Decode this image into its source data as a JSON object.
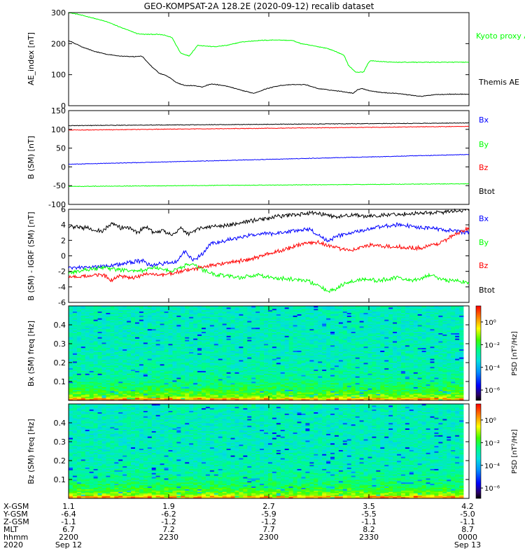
{
  "title": "GEO-KOMPSAT-2A 128.2E (2020-09-12) recalib dataset",
  "colors": {
    "black": "#000000",
    "green": "#00ff00",
    "red": "#ff0000",
    "blue": "#0000ff"
  },
  "chart_data": [
    {
      "type": "line",
      "ylabel": "AE_index [nT]",
      "ylim": [
        0,
        300
      ],
      "yticks": [
        "0",
        "100",
        "200",
        "300"
      ],
      "series": [
        {
          "name": "Kyoto proxy AE",
          "color": "green",
          "x": [
            0,
            2,
            5,
            9,
            12,
            13.5,
            14.5,
            16,
            17.5,
            19,
            20.5,
            22,
            24,
            26,
            28,
            30,
            32,
            34,
            37,
            40,
            44,
            48,
            52,
            54,
            56,
            58,
            60,
            62,
            64,
            65,
            66.5,
            67,
            68.5,
            69.5,
            70,
            72,
            75,
            80,
            84,
            87,
            90,
            93
          ],
          "values": [
            300,
            295,
            285,
            270,
            253,
            245,
            240,
            232,
            230,
            230,
            230,
            228,
            220,
            170,
            160,
            195,
            192,
            190,
            195,
            205,
            210,
            212,
            210,
            200,
            195,
            190,
            185,
            175,
            162,
            130,
            110,
            108,
            108,
            135,
            145,
            143,
            140,
            140,
            140,
            140,
            140,
            140
          ]
        },
        {
          "name": "Themis AE",
          "color": "black",
          "x": [
            0,
            3,
            6,
            9,
            12,
            15,
            17,
            19,
            21,
            23,
            25,
            27,
            29,
            31,
            33,
            35,
            37,
            40,
            43,
            46,
            49,
            52,
            55,
            58,
            61,
            64,
            66,
            67,
            68,
            70,
            73,
            76,
            79,
            82,
            85,
            88,
            91,
            93
          ],
          "values": [
            210,
            190,
            175,
            165,
            160,
            158,
            160,
            130,
            105,
            95,
            75,
            65,
            65,
            60,
            70,
            67,
            62,
            50,
            40,
            55,
            65,
            68,
            68,
            55,
            50,
            45,
            40,
            50,
            56,
            48,
            42,
            40,
            35,
            30,
            36,
            37,
            37,
            37
          ]
        }
      ]
    },
    {
      "type": "line",
      "ylabel": "B (SM) [nT]",
      "ylim": [
        -100,
        150
      ],
      "yticks": [
        "-100",
        "-50",
        "0",
        "50",
        "100",
        "150"
      ],
      "series": [
        {
          "name": "Bx",
          "color": "blue",
          "x": [
            0,
            93
          ],
          "values": [
            7,
            33
          ]
        },
        {
          "name": "By",
          "color": "green",
          "x": [
            0,
            93
          ],
          "values": [
            -52,
            -45
          ]
        },
        {
          "name": "Bz",
          "color": "red",
          "x": [
            0,
            93
          ],
          "values": [
            98,
            108
          ]
        },
        {
          "name": "Btot",
          "color": "black",
          "x": [
            0,
            93
          ],
          "values": [
            110,
            117
          ]
        }
      ]
    },
    {
      "type": "line",
      "ylabel": "B (SM) - IGRF (SM) [nT]",
      "ylim": [
        -6,
        6
      ],
      "yticks": [
        "-6",
        "-4",
        "-2",
        "0",
        "2",
        "4",
        "6"
      ],
      "series": [
        {
          "name": "Bx",
          "color": "blue",
          "x": [
            0,
            6,
            12,
            15,
            17,
            19,
            22,
            25,
            27,
            29,
            31,
            33,
            36,
            40,
            44,
            48,
            52,
            56,
            60,
            64,
            68,
            72,
            76,
            80,
            84,
            88,
            93
          ],
          "values": [
            -1.6,
            -1.4,
            -1.1,
            -0.8,
            -0.6,
            -1.2,
            -1.0,
            -0.8,
            0.6,
            -0.6,
            0.2,
            1.6,
            1.9,
            2.4,
            2.8,
            2.9,
            3.2,
            3.4,
            2.0,
            2.8,
            3.2,
            3.7,
            4.0,
            3.8,
            3.6,
            3.3,
            3.0
          ]
        },
        {
          "name": "By",
          "color": "green",
          "x": [
            0,
            4,
            8,
            12,
            16,
            20,
            24,
            28,
            32,
            34,
            36,
            40,
            44,
            48,
            52,
            56,
            60,
            62,
            64,
            68,
            72,
            76,
            80,
            84,
            88,
            93
          ],
          "values": [
            -2.2,
            -1.8,
            -1.5,
            -1.8,
            -2.0,
            -1.5,
            -2.0,
            -1.0,
            -2.0,
            -2.4,
            -2.5,
            -2.8,
            -2.4,
            -2.9,
            -3.0,
            -3.3,
            -4.5,
            -4.3,
            -3.6,
            -3.0,
            -3.2,
            -2.8,
            -3.2,
            -2.5,
            -3.2,
            -3.4
          ]
        },
        {
          "name": "Bz",
          "color": "red",
          "x": [
            0,
            4,
            8,
            10,
            12,
            15,
            18,
            22,
            26,
            30,
            34,
            38,
            42,
            46,
            50,
            54,
            58,
            62,
            66,
            70,
            74,
            78,
            82,
            86,
            90,
            93
          ],
          "values": [
            -2.8,
            -2.6,
            -2.4,
            -3.2,
            -2.6,
            -2.9,
            -2.3,
            -2.5,
            -2.0,
            -1.6,
            -1.1,
            -0.8,
            -0.5,
            0.2,
            0.8,
            1.5,
            1.8,
            1.0,
            0.8,
            1.4,
            1.2,
            1.1,
            1.0,
            1.6,
            2.8,
            3.6
          ]
        },
        {
          "name": "Btot",
          "color": "black",
          "x": [
            0,
            4,
            8,
            10,
            12,
            14,
            16,
            18,
            20,
            22,
            24,
            26,
            28,
            30,
            34,
            38,
            42,
            46,
            50,
            54,
            58,
            62,
            66,
            70,
            74,
            78,
            82,
            86,
            90,
            93
          ],
          "values": [
            3.8,
            3.6,
            3.2,
            4.2,
            3.6,
            3.7,
            3.0,
            3.8,
            2.9,
            3.3,
            2.6,
            3.6,
            2.8,
            3.5,
            3.8,
            4.0,
            4.5,
            4.8,
            5.2,
            5.4,
            5.5,
            5.0,
            5.3,
            5.1,
            5.3,
            5.4,
            5.5,
            5.6,
            5.8,
            6.0
          ]
        }
      ]
    },
    {
      "type": "heatmap",
      "ylabel": "Bx (SM) freq [Hz]",
      "ylim": [
        0,
        0.5
      ],
      "yticks": [
        "0.1",
        "0.2",
        "0.3",
        "0.4"
      ],
      "colorbar_label": "PSD [nT²/Hz]",
      "colorbar_ticks": [
        "10⁰",
        "10⁻²",
        "10⁻⁴",
        "10⁻⁶"
      ]
    },
    {
      "type": "heatmap",
      "ylabel": "Bz (SM) freq [Hz]",
      "ylim": [
        0,
        0.5
      ],
      "yticks": [
        "0.1",
        "0.2",
        "0.3",
        "0.4"
      ],
      "colorbar_label": "PSD [nT²/Hz]",
      "colorbar_ticks": [
        "10⁰",
        "10⁻²",
        "10⁻⁴",
        "10⁻⁶"
      ]
    }
  ],
  "ae_legend": {
    "kyoto": "Kyoto proxy AE",
    "themis": "Themis AE"
  },
  "b_legend": [
    "Bx",
    "By",
    "Bz",
    "Btot"
  ],
  "x_axis": {
    "xlim": [
      0,
      93
    ],
    "row_labels": [
      "X-GSM",
      "Y-GSM",
      "Z-GSM",
      "MLT",
      "hhmm",
      "2020"
    ],
    "ticks": [
      {
        "x": 0,
        "values": [
          "1.1",
          "-6.4",
          "-1.1",
          "6.7",
          "2200",
          "Sep 12"
        ]
      },
      {
        "x": 23.25,
        "values": [
          "1.9",
          "-6.2",
          "-1.2",
          "7.2",
          "2230",
          ""
        ]
      },
      {
        "x": 46.5,
        "values": [
          "2.7",
          "-5.9",
          "-1.2",
          "7.7",
          "2300",
          ""
        ]
      },
      {
        "x": 69.75,
        "values": [
          "3.5",
          "-5.5",
          "-1.1",
          "8.2",
          "2330",
          ""
        ]
      },
      {
        "x": 93,
        "values": [
          "4.2",
          "-5.0",
          "-1.1",
          "8.7",
          "0000",
          "Sep 13"
        ]
      }
    ]
  }
}
